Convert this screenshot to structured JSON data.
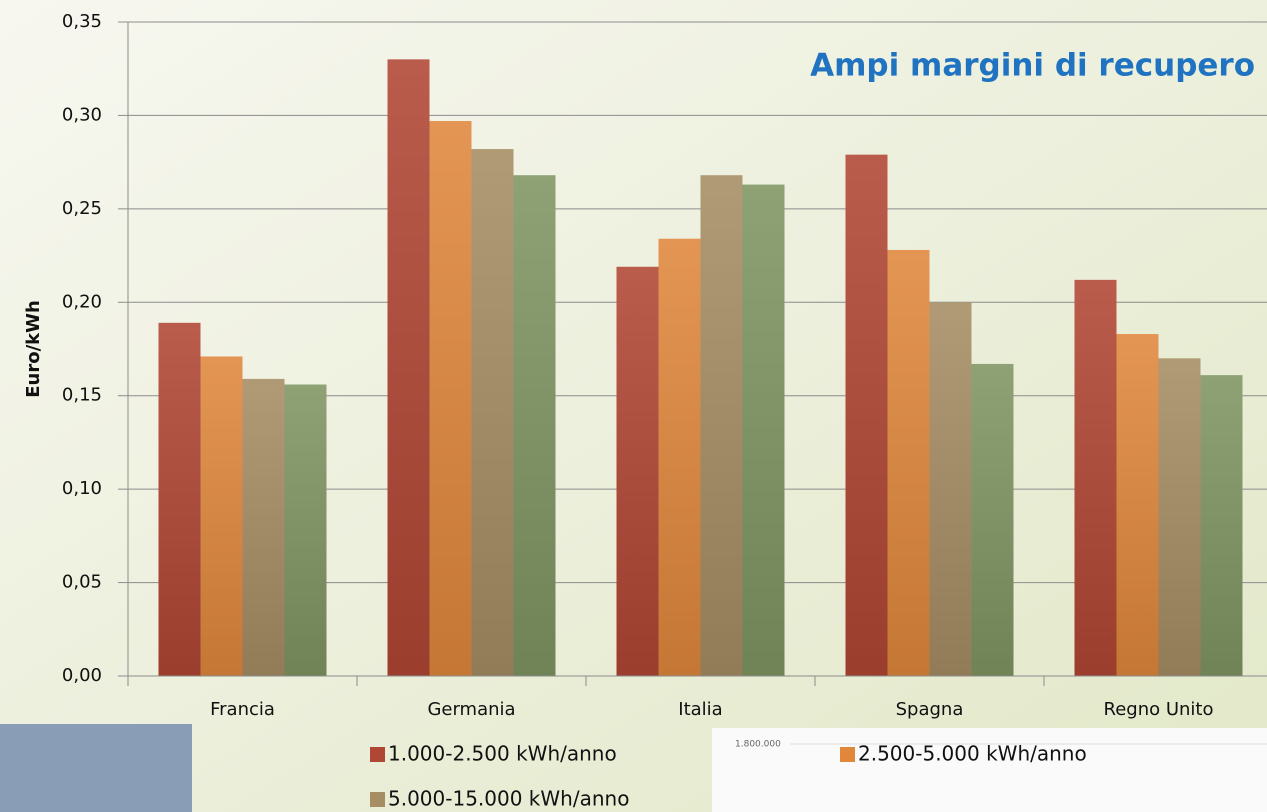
{
  "chart_data": {
    "type": "bar",
    "title": "Ampi margini di recupero",
    "y_label": "Euro/kWh",
    "categories": [
      "Francia",
      "Germania",
      "Italia",
      "Spagna",
      "Regno Unito"
    ],
    "series": [
      {
        "name": "1.000-2.500 kWh/anno",
        "color": "#b04634",
        "values": [
          0.189,
          0.33,
          0.219,
          0.279,
          0.212
        ]
      },
      {
        "name": "2.500-5.000 kWh/anno",
        "color": "#e0873c",
        "values": [
          0.171,
          0.297,
          0.234,
          0.228,
          0.183
        ]
      },
      {
        "name": "5.000-15.000 kWh/anno",
        "color": "#a68d64",
        "values": [
          0.159,
          0.282,
          0.268,
          0.2,
          0.17
        ]
      },
      {
        "name": "",
        "color": "#7f9562",
        "values": [
          0.156,
          0.268,
          0.263,
          0.167,
          0.161
        ]
      }
    ],
    "ylim": [
      0,
      0.35
    ],
    "yticks": [
      {
        "value": 0,
        "label": "0,00"
      },
      {
        "value": 0.05,
        "label": "0,05"
      },
      {
        "value": 0.1,
        "label": "0,10"
      },
      {
        "value": 0.15,
        "label": "0,15"
      },
      {
        "value": 0.2,
        "label": "0,20"
      },
      {
        "value": 0.25,
        "label": "0,25"
      },
      {
        "value": 0.3,
        "label": "0,30"
      },
      {
        "value": 0.35,
        "label": "0,35"
      }
    ],
    "grid": true
  },
  "inset_chart": {
    "label": "1.800.000"
  }
}
